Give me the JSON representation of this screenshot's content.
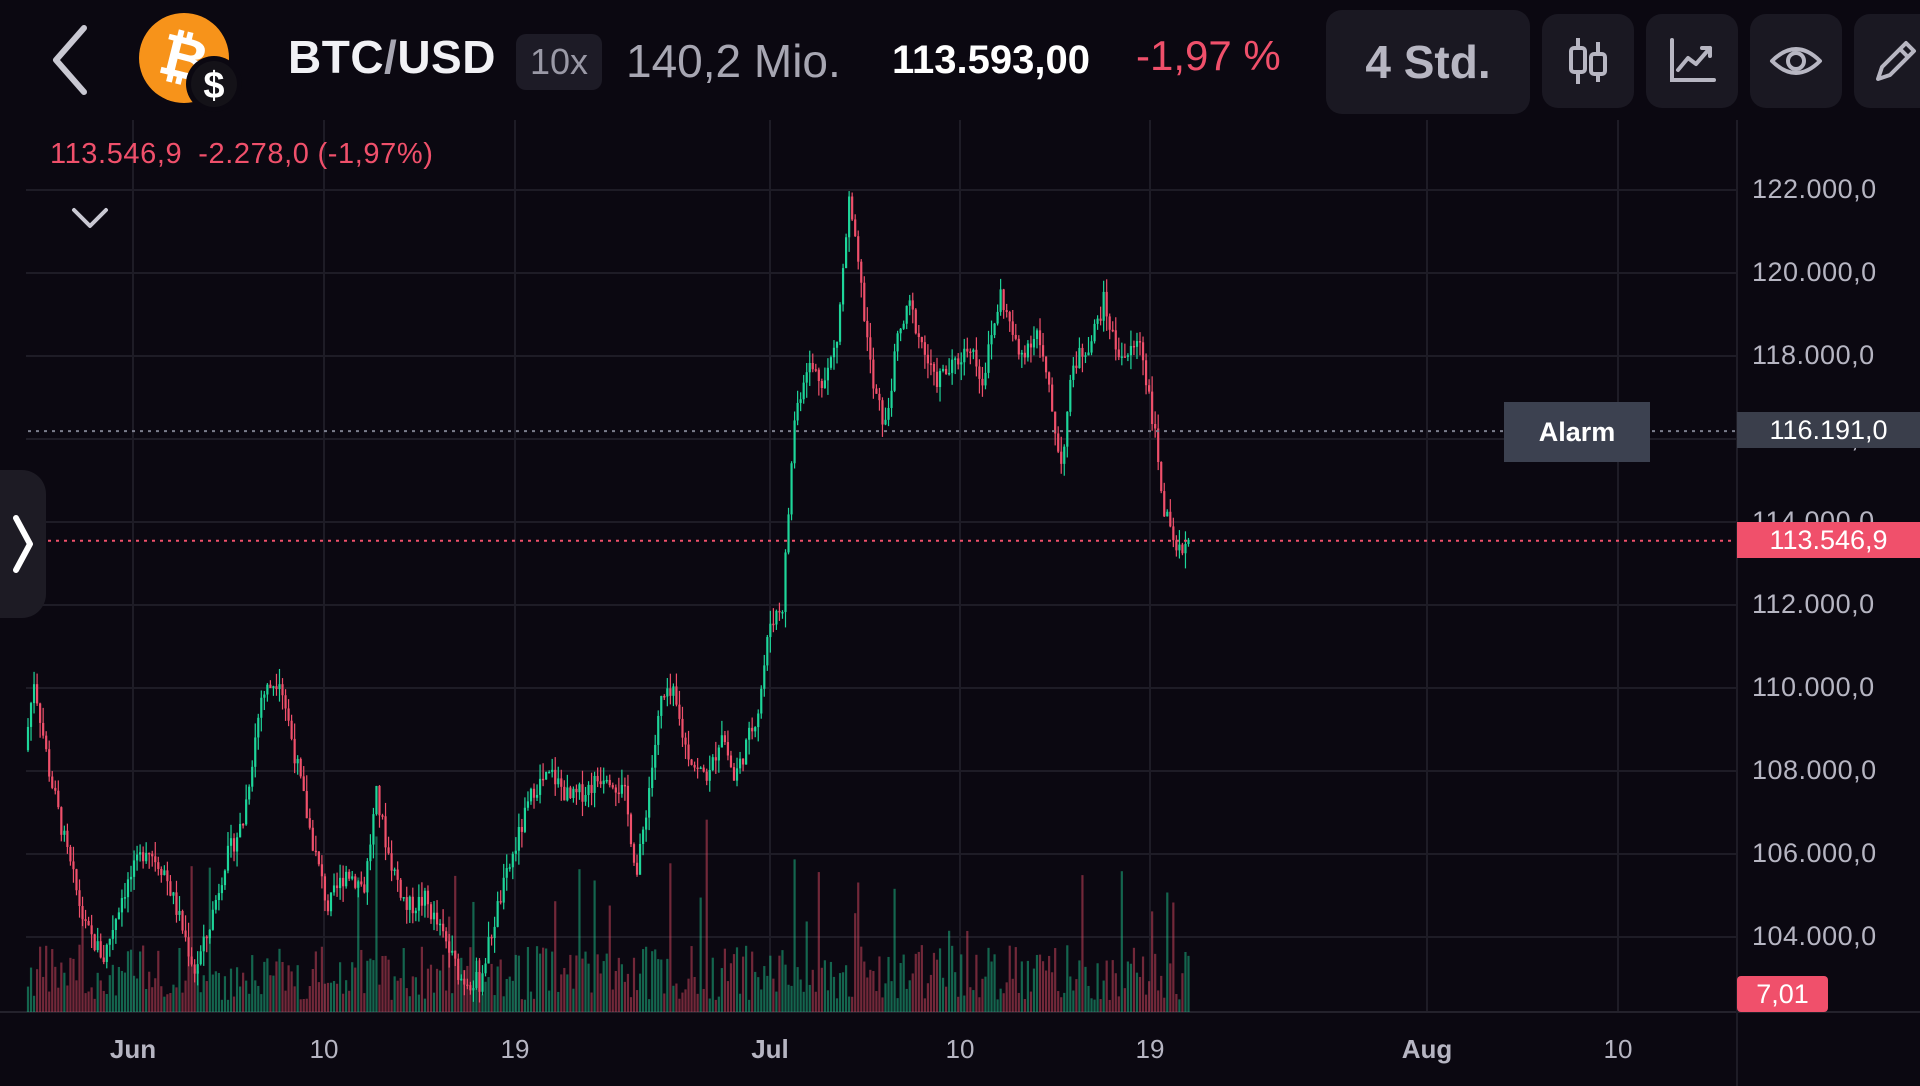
{
  "header": {
    "symbol_base": "BTC",
    "symbol_sep": "/",
    "symbol_quote": "USD",
    "leverage": "10x",
    "volume": "140,2 Mio.",
    "last_price": "113.593,00",
    "change_pct": "-1,97 %",
    "timeframe": "4 Std."
  },
  "legend": {
    "close": "113.546,9",
    "change": "-2.278,0",
    "change_pct": "(-1,97%)"
  },
  "alarm": {
    "label": "Alarm",
    "price": "116.191,0"
  },
  "current_price_tag": "113.546,9",
  "volume_tag": "7,01",
  "icons": [
    "back-chevron-icon",
    "bitcoin-icon",
    "dollar-icon",
    "candlestick-icon",
    "line-chart-icon",
    "eye-icon",
    "pencil-icon",
    "collapse-chevron-icon",
    "side-panel-chevron-icon"
  ],
  "colors": {
    "up": "#1ed69a",
    "down": "#f0506b",
    "bg": "#0b0811",
    "grid": "#1e1c26"
  },
  "chart_data": {
    "type": "candlestick",
    "y_labels": [
      "122.000,0",
      "120.000,0",
      "118.000,0",
      "116.000,0",
      "114.000,0",
      "112.000,0",
      "110.000,0",
      "108.000,0",
      "106.000,0",
      "104.000,0"
    ],
    "x_labels": [
      "Jun",
      "10",
      "19",
      "Jul",
      "10",
      "19",
      "Aug",
      "10"
    ],
    "ylim": [
      102800,
      123200
    ],
    "alarm_level": 116191,
    "current_price": 113546.9,
    "price_path_anchors": [
      {
        "t": 0,
        "p": 108500
      },
      {
        "t": 3,
        "p": 110200
      },
      {
        "t": 8,
        "p": 108000
      },
      {
        "t": 14,
        "p": 106000
      },
      {
        "t": 20,
        "p": 104200
      },
      {
        "t": 26,
        "p": 103500
      },
      {
        "t": 32,
        "p": 105000
      },
      {
        "t": 40,
        "p": 106200
      },
      {
        "t": 46,
        "p": 105600
      },
      {
        "t": 52,
        "p": 104200
      },
      {
        "t": 56,
        "p": 103200
      },
      {
        "t": 60,
        "p": 104000
      },
      {
        "t": 66,
        "p": 105800
      },
      {
        "t": 72,
        "p": 106800
      },
      {
        "t": 78,
        "p": 109800
      },
      {
        "t": 84,
        "p": 110300
      },
      {
        "t": 88,
        "p": 108800
      },
      {
        "t": 94,
        "p": 106600
      },
      {
        "t": 100,
        "p": 104700
      },
      {
        "t": 106,
        "p": 105600
      },
      {
        "t": 112,
        "p": 105200
      },
      {
        "t": 116,
        "p": 107400
      },
      {
        "t": 120,
        "p": 106000
      },
      {
        "t": 126,
        "p": 104700
      },
      {
        "t": 132,
        "p": 104900
      },
      {
        "t": 138,
        "p": 104000
      },
      {
        "t": 144,
        "p": 103000
      },
      {
        "t": 150,
        "p": 102900
      },
      {
        "t": 156,
        "p": 104700
      },
      {
        "t": 162,
        "p": 106200
      },
      {
        "t": 168,
        "p": 107600
      },
      {
        "t": 174,
        "p": 107900
      },
      {
        "t": 180,
        "p": 107300
      },
      {
        "t": 186,
        "p": 107600
      },
      {
        "t": 192,
        "p": 108000
      },
      {
        "t": 198,
        "p": 107400
      },
      {
        "t": 202,
        "p": 105500
      },
      {
        "t": 206,
        "p": 107600
      },
      {
        "t": 210,
        "p": 109700
      },
      {
        "t": 214,
        "p": 109800
      },
      {
        "t": 218,
        "p": 108600
      },
      {
        "t": 222,
        "p": 108000
      },
      {
        "t": 226,
        "p": 107900
      },
      {
        "t": 230,
        "p": 109000
      },
      {
        "t": 234,
        "p": 107800
      },
      {
        "t": 238,
        "p": 108600
      },
      {
        "t": 242,
        "p": 109500
      },
      {
        "t": 246,
        "p": 111600
      },
      {
        "t": 250,
        "p": 112000
      },
      {
        "t": 254,
        "p": 116500
      },
      {
        "t": 258,
        "p": 117800
      },
      {
        "t": 264,
        "p": 117400
      },
      {
        "t": 268,
        "p": 118400
      },
      {
        "t": 272,
        "p": 121700
      },
      {
        "t": 276,
        "p": 119600
      },
      {
        "t": 280,
        "p": 117200
      },
      {
        "t": 284,
        "p": 116300
      },
      {
        "t": 288,
        "p": 118400
      },
      {
        "t": 292,
        "p": 119200
      },
      {
        "t": 296,
        "p": 118300
      },
      {
        "t": 300,
        "p": 117400
      },
      {
        "t": 306,
        "p": 117700
      },
      {
        "t": 312,
        "p": 118300
      },
      {
        "t": 316,
        "p": 117400
      },
      {
        "t": 322,
        "p": 119500
      },
      {
        "t": 328,
        "p": 118000
      },
      {
        "t": 334,
        "p": 118600
      },
      {
        "t": 338,
        "p": 117100
      },
      {
        "t": 342,
        "p": 115400
      },
      {
        "t": 346,
        "p": 117800
      },
      {
        "t": 352,
        "p": 118400
      },
      {
        "t": 356,
        "p": 119300
      },
      {
        "t": 360,
        "p": 118200
      },
      {
        "t": 364,
        "p": 118000
      },
      {
        "t": 368,
        "p": 118400
      },
      {
        "t": 372,
        "p": 116600
      },
      {
        "t": 376,
        "p": 114300
      },
      {
        "t": 380,
        "p": 113100
      },
      {
        "t": 383,
        "p": 113547
      }
    ],
    "candle_count": 384
  }
}
